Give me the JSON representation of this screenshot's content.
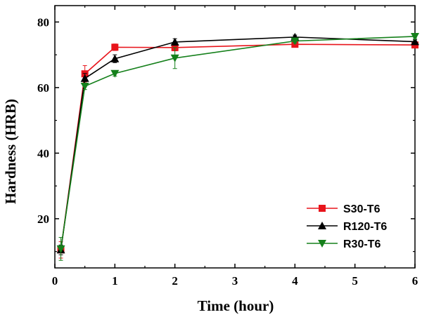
{
  "chart_data": {
    "type": "line",
    "title": "",
    "xlabel": "Time (hour)",
    "ylabel": "Hardness (HRB)",
    "xlim": [
      0,
      6
    ],
    "ylim": [
      5,
      85
    ],
    "x_ticks": [
      0,
      1,
      2,
      3,
      4,
      5,
      6
    ],
    "y_ticks": [
      20,
      40,
      60,
      80
    ],
    "grid": false,
    "legend_position": "bottom-right",
    "series": [
      {
        "name": "S30-T6",
        "color": "#e8141b",
        "marker": "square",
        "x": [
          0.1,
          0.5,
          1,
          2,
          4,
          6
        ],
        "values": [
          10.5,
          64.2,
          72.3,
          72.2,
          73.2,
          73.0
        ],
        "errors": [
          2.5,
          2.5,
          1.0,
          1.0,
          0.8,
          0.8
        ]
      },
      {
        "name": "R120-T6",
        "color": "#000000",
        "marker": "triangle-up",
        "x": [
          0.1,
          0.5,
          1,
          2,
          4,
          6
        ],
        "values": [
          10.5,
          62.8,
          68.8,
          73.9,
          75.4,
          74.0
        ],
        "errors": [
          1.5,
          1.5,
          1.2,
          1.0,
          0.6,
          0.6
        ]
      },
      {
        "name": "R30-T6",
        "color": "#15801b",
        "marker": "triangle-down",
        "x": [
          0.1,
          0.5,
          1,
          2,
          4,
          6
        ],
        "values": [
          10.8,
          60.4,
          64.3,
          69.0,
          74.2,
          75.6
        ],
        "errors": [
          3.5,
          1.0,
          0.8,
          3.2,
          0.6,
          0.6
        ]
      }
    ]
  }
}
